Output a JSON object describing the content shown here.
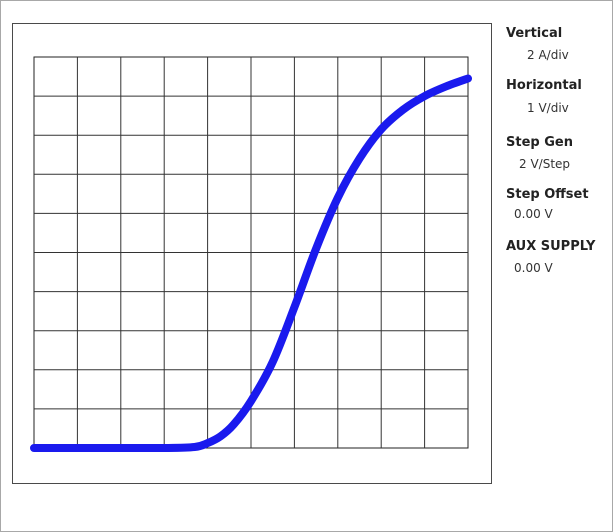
{
  "readout": {
    "vertical": {
      "label": "Vertical",
      "value": "2 A/div"
    },
    "horizontal": {
      "label": "Horizontal",
      "value": "1 V/div"
    },
    "step_gen": {
      "label": "Step Gen",
      "value": "2 V/Step"
    },
    "step_offset": {
      "label": "Step Offset",
      "value": "0.00 V"
    },
    "aux_supply": {
      "label": "AUX SUPPLY",
      "value": "0.00 V"
    }
  },
  "chart_data": {
    "type": "line",
    "title": "",
    "xlabel": "",
    "ylabel": "",
    "x_divisions": 10,
    "y_divisions": 10,
    "grid": true,
    "trace_color": "#1a1aee",
    "xlim": [
      0,
      10
    ],
    "ylim": [
      0,
      20
    ],
    "series": [
      {
        "x": [
          0,
          1.5,
          3,
          3.7,
          4.0,
          4.3,
          4.6,
          5.0,
          5.5,
          6.0,
          6.5,
          7.0,
          7.5,
          8.0,
          8.5,
          9.0,
          9.5,
          10
        ],
        "y": [
          0,
          0,
          0,
          0.05,
          0.25,
          0.6,
          1.2,
          2.4,
          4.4,
          7.2,
          10.2,
          12.8,
          14.8,
          16.3,
          17.3,
          18.0,
          18.5,
          18.9
        ]
      }
    ]
  }
}
